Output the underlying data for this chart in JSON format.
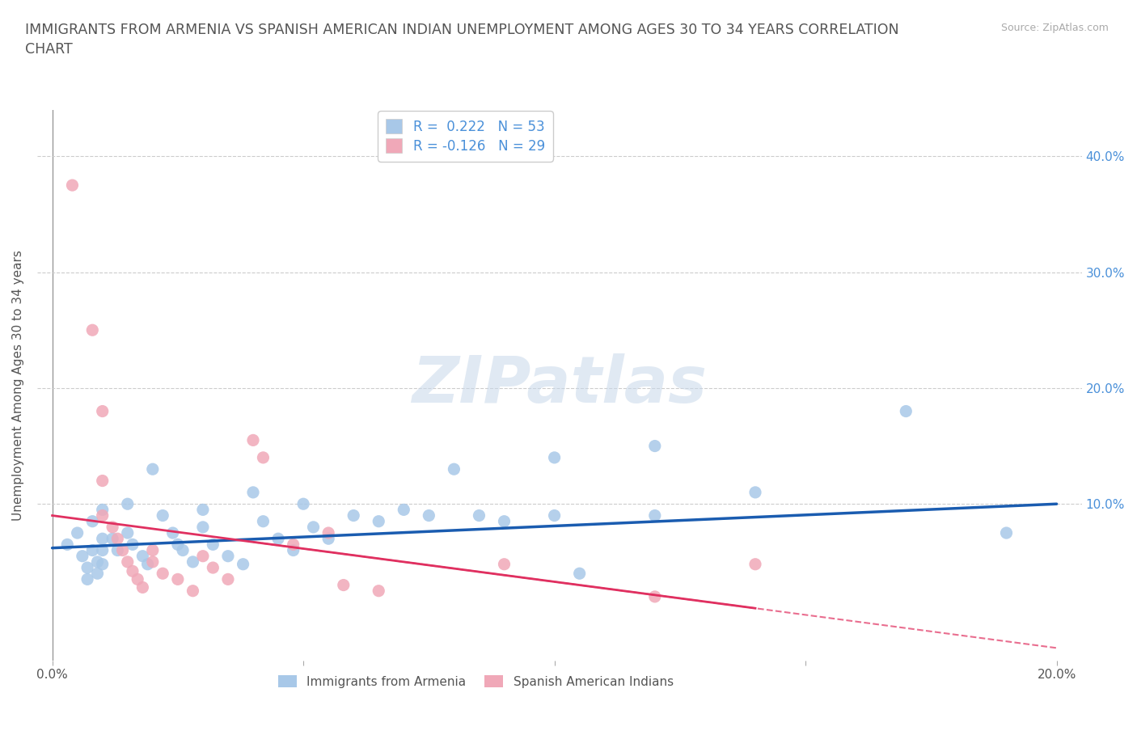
{
  "title": "IMMIGRANTS FROM ARMENIA VS SPANISH AMERICAN INDIAN UNEMPLOYMENT AMONG AGES 30 TO 34 YEARS CORRELATION\nCHART",
  "source": "Source: ZipAtlas.com",
  "ylabel": "Unemployment Among Ages 30 to 34 years",
  "xlim": [
    -0.003,
    0.205
  ],
  "ylim": [
    -0.035,
    0.44
  ],
  "ytick_positions": [
    0.0,
    0.1,
    0.2,
    0.3,
    0.4
  ],
  "ytick_labels": [
    "",
    "10.0%",
    "20.0%",
    "30.0%",
    "40.0%"
  ],
  "xtick_positions": [
    0.0,
    0.05,
    0.1,
    0.15,
    0.2
  ],
  "xtick_labels": [
    "0.0%",
    "",
    "",
    "",
    "20.0%"
  ],
  "background_color": "#ffffff",
  "watermark": "ZIPatlas",
  "R_blue": 0.222,
  "N_blue": 53,
  "R_pink": -0.126,
  "N_pink": 29,
  "blue_color": "#a8c8e8",
  "pink_color": "#f0a8b8",
  "line_blue_color": "#1a5cb0",
  "line_pink_color": "#e03060",
  "tick_label_color": "#4a90d9",
  "blue_scatter": [
    [
      0.003,
      0.065
    ],
    [
      0.005,
      0.075
    ],
    [
      0.006,
      0.055
    ],
    [
      0.007,
      0.045
    ],
    [
      0.007,
      0.035
    ],
    [
      0.008,
      0.085
    ],
    [
      0.008,
      0.06
    ],
    [
      0.009,
      0.05
    ],
    [
      0.009,
      0.04
    ],
    [
      0.01,
      0.095
    ],
    [
      0.01,
      0.07
    ],
    [
      0.01,
      0.06
    ],
    [
      0.01,
      0.048
    ],
    [
      0.012,
      0.07
    ],
    [
      0.013,
      0.06
    ],
    [
      0.015,
      0.1
    ],
    [
      0.015,
      0.075
    ],
    [
      0.016,
      0.065
    ],
    [
      0.018,
      0.055
    ],
    [
      0.019,
      0.048
    ],
    [
      0.02,
      0.13
    ],
    [
      0.022,
      0.09
    ],
    [
      0.024,
      0.075
    ],
    [
      0.025,
      0.065
    ],
    [
      0.026,
      0.06
    ],
    [
      0.028,
      0.05
    ],
    [
      0.03,
      0.095
    ],
    [
      0.03,
      0.08
    ],
    [
      0.032,
      0.065
    ],
    [
      0.035,
      0.055
    ],
    [
      0.038,
      0.048
    ],
    [
      0.04,
      0.11
    ],
    [
      0.042,
      0.085
    ],
    [
      0.045,
      0.07
    ],
    [
      0.048,
      0.06
    ],
    [
      0.05,
      0.1
    ],
    [
      0.052,
      0.08
    ],
    [
      0.055,
      0.07
    ],
    [
      0.06,
      0.09
    ],
    [
      0.065,
      0.085
    ],
    [
      0.07,
      0.095
    ],
    [
      0.075,
      0.09
    ],
    [
      0.08,
      0.13
    ],
    [
      0.085,
      0.09
    ],
    [
      0.09,
      0.085
    ],
    [
      0.1,
      0.14
    ],
    [
      0.1,
      0.09
    ],
    [
      0.105,
      0.04
    ],
    [
      0.12,
      0.15
    ],
    [
      0.12,
      0.09
    ],
    [
      0.14,
      0.11
    ],
    [
      0.17,
      0.18
    ],
    [
      0.19,
      0.075
    ]
  ],
  "pink_scatter": [
    [
      0.004,
      0.375
    ],
    [
      0.008,
      0.25
    ],
    [
      0.01,
      0.18
    ],
    [
      0.01,
      0.12
    ],
    [
      0.01,
      0.09
    ],
    [
      0.012,
      0.08
    ],
    [
      0.013,
      0.07
    ],
    [
      0.014,
      0.06
    ],
    [
      0.015,
      0.05
    ],
    [
      0.016,
      0.042
    ],
    [
      0.017,
      0.035
    ],
    [
      0.018,
      0.028
    ],
    [
      0.02,
      0.06
    ],
    [
      0.02,
      0.05
    ],
    [
      0.022,
      0.04
    ],
    [
      0.025,
      0.035
    ],
    [
      0.028,
      0.025
    ],
    [
      0.03,
      0.055
    ],
    [
      0.032,
      0.045
    ],
    [
      0.035,
      0.035
    ],
    [
      0.04,
      0.155
    ],
    [
      0.042,
      0.14
    ],
    [
      0.048,
      0.065
    ],
    [
      0.055,
      0.075
    ],
    [
      0.058,
      0.03
    ],
    [
      0.065,
      0.025
    ],
    [
      0.09,
      0.048
    ],
    [
      0.12,
      0.02
    ],
    [
      0.14,
      0.048
    ]
  ],
  "blue_line_x": [
    0.0,
    0.2
  ],
  "blue_line_y": [
    0.062,
    0.1
  ],
  "pink_line_x": [
    0.0,
    0.14
  ],
  "pink_line_y": [
    0.09,
    0.01
  ]
}
